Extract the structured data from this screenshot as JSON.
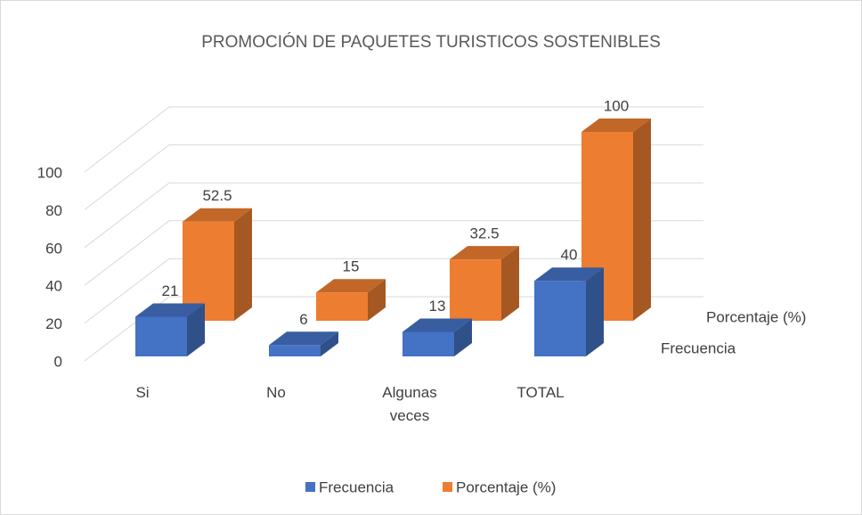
{
  "chart_data": {
    "type": "bar3d",
    "title": "PROMOCIÓN DE PAQUETES TURISTICOS SOSTENIBLES",
    "categories": [
      "Si",
      "No",
      "Algunas veces",
      "TOTAL"
    ],
    "series": [
      {
        "name": "Frecuencia",
        "color": "#4472c4",
        "values": [
          21,
          6,
          13,
          40
        ]
      },
      {
        "name": "Porcentaje (%)",
        "color": "#ed7d31",
        "values": [
          52.5,
          15,
          32.5,
          100
        ]
      }
    ],
    "ylim": [
      0,
      100
    ],
    "yticks": [
      0,
      20,
      40,
      60,
      80,
      100
    ],
    "grid": true,
    "legend": "bottom"
  }
}
